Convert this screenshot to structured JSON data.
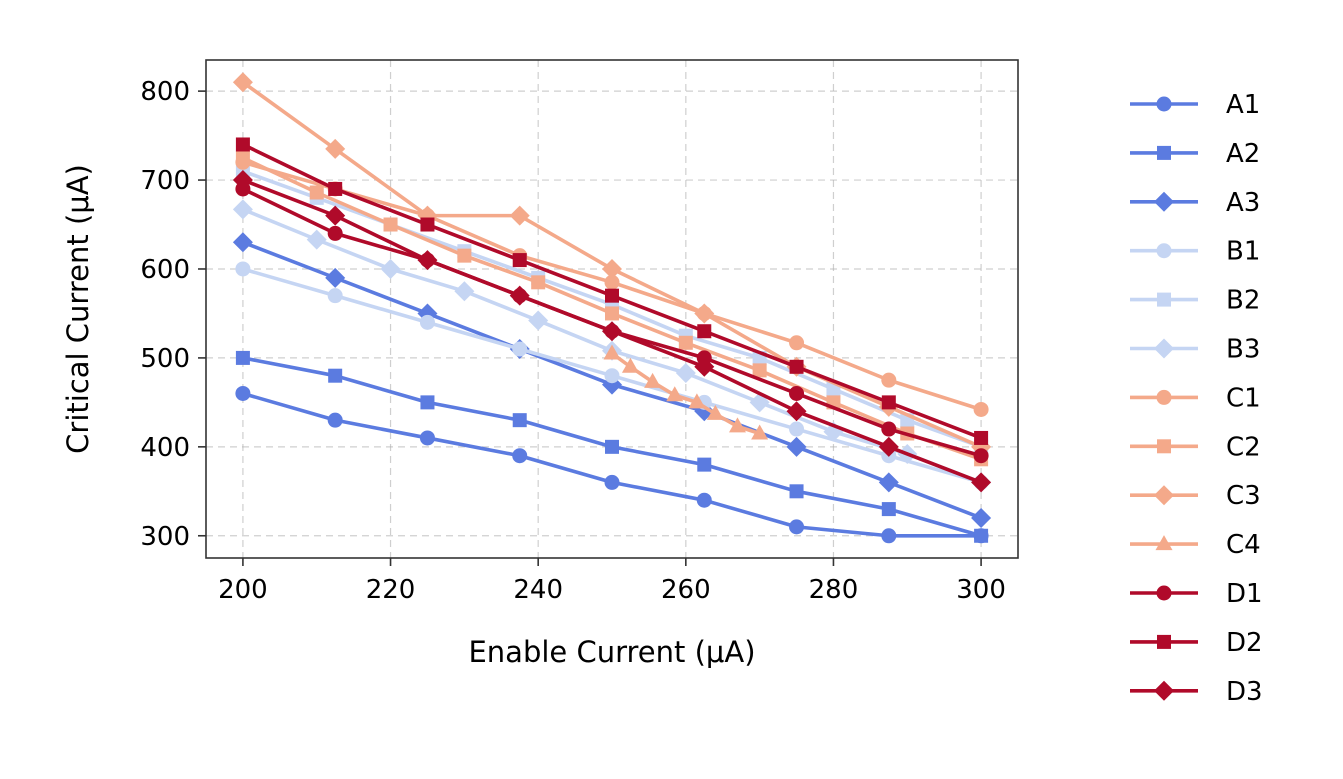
{
  "chart_data": {
    "type": "line",
    "xlabel": "Enable Current (μA)",
    "ylabel": "Critical Current (μA)",
    "xlim": [
      195,
      305
    ],
    "ylim": [
      275,
      835
    ],
    "xticks": [
      200,
      220,
      240,
      260,
      280,
      300
    ],
    "yticks": [
      300,
      400,
      500,
      600,
      700,
      800
    ],
    "grid": true,
    "legend": "right-outside",
    "series": [
      {
        "name": "A1",
        "color": "#5b7be0",
        "marker": "circle",
        "x": [
          200,
          212.5,
          225,
          237.5,
          250,
          262.5,
          275,
          287.5,
          300
        ],
        "y": [
          460,
          430,
          410,
          390,
          360,
          340,
          310,
          300,
          300
        ]
      },
      {
        "name": "A2",
        "color": "#5b7be0",
        "marker": "square",
        "x": [
          200,
          212.5,
          225,
          237.5,
          250,
          262.5,
          275,
          287.5,
          300
        ],
        "y": [
          500,
          480,
          450,
          430,
          400,
          380,
          350,
          330,
          300
        ]
      },
      {
        "name": "A3",
        "color": "#5b7be0",
        "marker": "diamond",
        "x": [
          200,
          212.5,
          225,
          237.5,
          250,
          262.5,
          275,
          287.5,
          300
        ],
        "y": [
          630,
          590,
          550,
          510,
          470,
          440,
          400,
          360,
          320
        ]
      },
      {
        "name": "B1",
        "color": "#c5d5f3",
        "marker": "circle",
        "x": [
          200,
          212.5,
          225,
          237.5,
          250,
          262.5,
          275,
          287.5,
          300
        ],
        "y": [
          600,
          570,
          540,
          510,
          480,
          450,
          420,
          390,
          360
        ]
      },
      {
        "name": "B2",
        "color": "#c5d5f3",
        "marker": "square",
        "x": [
          200,
          210,
          220,
          230,
          240,
          250,
          260,
          270,
          280,
          290,
          300
        ],
        "y": [
          710,
          680,
          650,
          620,
          590,
          560,
          525,
          500,
          465,
          430,
          400
        ]
      },
      {
        "name": "B3",
        "color": "#c5d5f3",
        "marker": "diamond",
        "x": [
          200,
          210,
          220,
          230,
          240,
          250,
          260,
          270,
          280,
          290,
          300
        ],
        "y": [
          667,
          633,
          600,
          575,
          542,
          508,
          483,
          450,
          417,
          392,
          360
        ]
      },
      {
        "name": "C1",
        "color": "#f4a98a",
        "marker": "circle",
        "x": [
          200,
          212.5,
          225,
          237.5,
          250,
          262.5,
          275,
          287.5,
          300
        ],
        "y": [
          720,
          690,
          660,
          615,
          585,
          550,
          517,
          475,
          442
        ]
      },
      {
        "name": "C2",
        "color": "#f4a98a",
        "marker": "square",
        "x": [
          200,
          210,
          220,
          230,
          240,
          250,
          260,
          270,
          280,
          290,
          300
        ],
        "y": [
          725,
          686,
          650,
          615,
          585,
          550,
          517,
          486,
          450,
          415,
          386
        ]
      },
      {
        "name": "C3",
        "color": "#f4a98a",
        "marker": "diamond",
        "x": [
          200,
          212.5,
          225,
          237.5,
          250,
          262.5,
          275,
          287.5,
          300
        ],
        "y": [
          810,
          735,
          660,
          660,
          600,
          550,
          490,
          445,
          400
        ]
      },
      {
        "name": "C4",
        "color": "#f4a98a",
        "marker": "triangle",
        "x": [
          250,
          252.5,
          255.5,
          258.5,
          261.5,
          264,
          267,
          270
        ],
        "y": [
          505,
          490,
          473,
          458,
          450,
          437,
          423,
          415
        ]
      },
      {
        "name": "D1",
        "color": "#b00a2a",
        "marker": "circle",
        "x": [
          200,
          212.5,
          225,
          237.5,
          250,
          262.5,
          275,
          287.5,
          300
        ],
        "y": [
          690,
          640,
          610,
          570,
          530,
          500,
          460,
          420,
          390
        ]
      },
      {
        "name": "D2",
        "color": "#b00a2a",
        "marker": "square",
        "x": [
          200,
          212.5,
          225,
          237.5,
          250,
          262.5,
          275,
          287.5,
          300
        ],
        "y": [
          740,
          690,
          650,
          610,
          570,
          530,
          490,
          450,
          410
        ]
      },
      {
        "name": "D3",
        "color": "#b00a2a",
        "marker": "diamond",
        "x": [
          200,
          212.5,
          225,
          237.5,
          250,
          262.5,
          275,
          287.5,
          300
        ],
        "y": [
          700,
          660,
          610,
          570,
          530,
          490,
          440,
          400,
          360
        ]
      }
    ]
  }
}
